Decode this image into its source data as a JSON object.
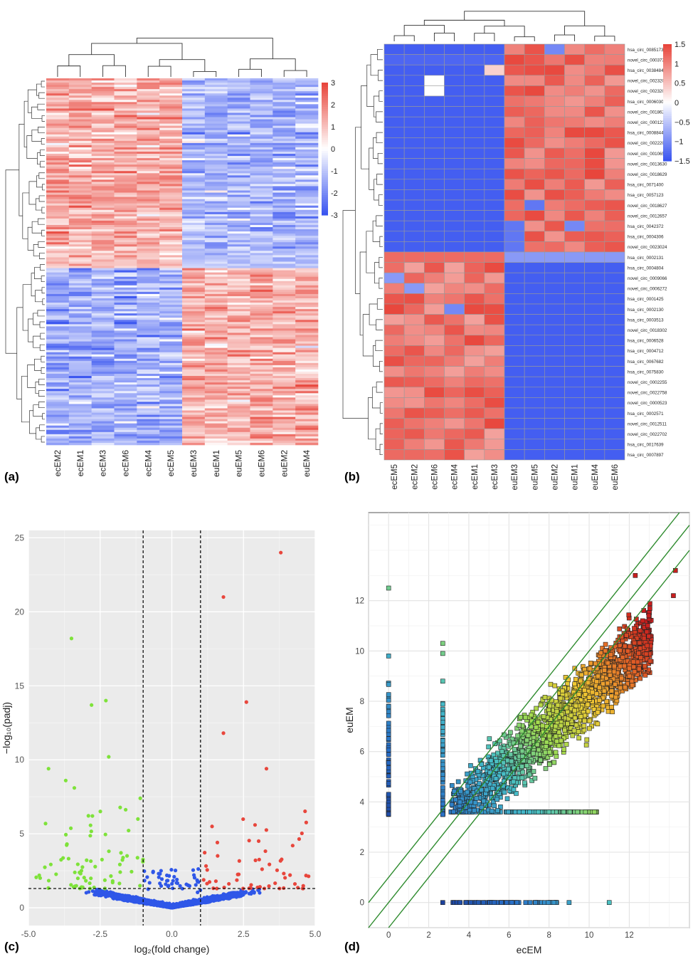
{
  "panels": {
    "a": {
      "label": "(a)"
    },
    "b": {
      "label": "(b)"
    },
    "c": {
      "label": "(c)"
    },
    "d": {
      "label": "(d)"
    }
  },
  "colors": {
    "heat_low": "#3a55f0",
    "heat_mid": "#ffffff",
    "heat_high": "#e8463c",
    "volcano_bg": "#ebebeb",
    "volcano_up": "#e8463c",
    "volcano_down": "#7ee23a",
    "volcano_ns": "#2f57e8",
    "scatter_line": "#2e8b2e"
  },
  "chart_data": [
    {
      "panel": "a",
      "type": "heatmap",
      "columns": [
        "ecEM2",
        "ecEM1",
        "ecEM3",
        "ecEM6",
        "ecEM4",
        "ecEM5",
        "euEM3",
        "euEM1",
        "euEM5",
        "euEM6",
        "euEM2",
        "euEM4"
      ],
      "legend_ticks": [
        "3",
        "2",
        "1",
        "0",
        "-1",
        "-2",
        "-3"
      ],
      "range": [
        -3,
        3
      ],
      "row_count": 170
    },
    {
      "panel": "b",
      "type": "heatmap",
      "columns": [
        "ecEM5",
        "ecEM2",
        "ecEM6",
        "ecEM4",
        "ecEM1",
        "ecEM3",
        "euEM3",
        "euEM5",
        "euEM2",
        "euEM1",
        "euEM4",
        "euEM6"
      ],
      "rows": [
        "hsa_circ_0085173",
        "novel_circ_0003732",
        "hsa_circ_0038484",
        "novel_circ_0023209",
        "novel_circ_0023207",
        "hsa_circ_0006030",
        "novel_circ_0018621",
        "novel_circ_0001232",
        "hsa_circ_0008844",
        "novel_circ_0022200",
        "novel_circ_0010653",
        "novel_circ_0013630",
        "novel_circ_0018629",
        "hsa_circ_0071400",
        "hsa_circ_0057123",
        "novel_circ_0018627",
        "novel_circ_0012657",
        "hsa_circ_0042372",
        "hsa_circ_0004306",
        "novel_circ_0023024",
        "hsa_circ_0002131",
        "hsa_circ_0004804",
        "novel_circ_0009066",
        "novel_circ_0006272",
        "hsa_circ_0001425",
        "hsa_circ_0002130",
        "hsa_circ_0003513",
        "novel_circ_0018302",
        "hsa_circ_0006528",
        "hsa_circ_0004712",
        "hsa_circ_0067682",
        "hsa_circ_0075830",
        "novel_circ_0002255",
        "novel_circ_0022758",
        "novel_circ_0000523",
        "hsa_circ_0002571",
        "novel_circ_0012511",
        "novel_circ_0022702",
        "hsa_circ_0017639",
        "hsa_circ_0007897"
      ],
      "legend_ticks": [
        "1.5",
        "1",
        "0.5",
        "0",
        "−0.5",
        "−1",
        "−1.5"
      ],
      "range": [
        -1.5,
        1.5
      ]
    },
    {
      "panel": "c",
      "type": "scatter",
      "xlabel": "log₂(fold change)",
      "ylabel": "−log₁₀(padj)",
      "xlim": [
        -5,
        5
      ],
      "ylim": [
        -1.2,
        25.5
      ],
      "x_ticks": [
        "-5.0",
        "-2.5",
        "0.0",
        "2.5",
        "5.0"
      ],
      "y_ticks": [
        "0",
        "5",
        "10",
        "15",
        "20",
        "25"
      ],
      "thresholds": {
        "x": [
          -1,
          1
        ],
        "y": 1.3
      },
      "highlight_points": [
        [
          3.8,
          24
        ],
        [
          1.8,
          21
        ],
        [
          -3.5,
          18.2
        ],
        [
          -2.3,
          14
        ],
        [
          -2.8,
          13.7
        ],
        [
          2.6,
          13.9
        ],
        [
          1.8,
          11.8
        ],
        [
          -2.2,
          10.2
        ],
        [
          -4.3,
          9.4
        ],
        [
          3.3,
          9.4
        ],
        [
          -3.7,
          8.6
        ],
        [
          -3.4,
          8.1
        ],
        [
          -1.1,
          7.4
        ]
      ]
    },
    {
      "panel": "d",
      "type": "scatter",
      "xlabel": "ecEM",
      "ylabel": "euEM",
      "xlim": [
        -1,
        15
      ],
      "ylim": [
        -1,
        15.5
      ],
      "x_ticks": [
        "0",
        "2",
        "4",
        "6",
        "8",
        "10",
        "12"
      ],
      "y_ticks": [
        "0",
        "2",
        "4",
        "6",
        "8",
        "10",
        "12"
      ],
      "diagonals": [
        -1,
        0,
        1
      ]
    }
  ]
}
